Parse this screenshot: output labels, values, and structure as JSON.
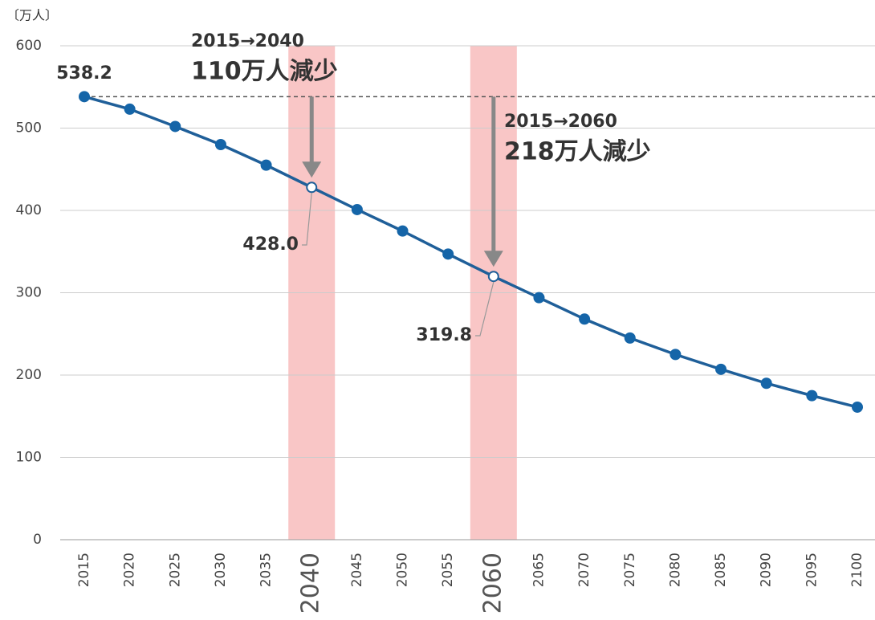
{
  "chart_data": {
    "type": "line",
    "y_label": "〔万人〕",
    "categories": [
      "2015",
      "2020",
      "2025",
      "2030",
      "2035",
      "2040",
      "2045",
      "2050",
      "2055",
      "2060",
      "2065",
      "2070",
      "2075",
      "2080",
      "2085",
      "2090",
      "2095",
      "2100"
    ],
    "values": [
      538.2,
      523,
      502,
      480,
      455,
      428.0,
      401,
      375,
      347,
      319.8,
      294,
      268,
      245,
      225,
      207,
      190,
      175,
      161
    ],
    "value_labels": [
      "538.2",
      null,
      null,
      null,
      null,
      "428.0",
      null,
      null,
      null,
      "319.8",
      null,
      null,
      null,
      null,
      null,
      null,
      null,
      null
    ],
    "highlight": [
      5,
      9
    ],
    "annotations": [
      "2015→2040",
      "110万人減少",
      "2015→2060",
      "218万人減少"
    ],
    "color": "#1f5f99",
    "band_color": "#f9c6c6",
    "ylim": [
      0,
      600
    ],
    "yticks": [
      0,
      100,
      200,
      300,
      400,
      500,
      600
    ],
    "grid": true
  }
}
